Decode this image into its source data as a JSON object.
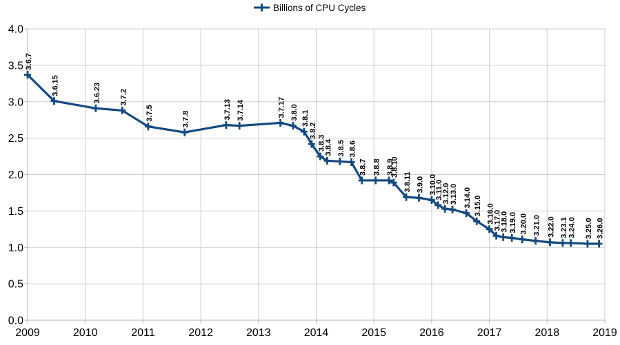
{
  "legend": {
    "label": "Billions of CPU Cycles"
  },
  "colors": {
    "series": "#14497E",
    "grid": "#CDCDCD",
    "axis": "#B3B3B3",
    "text": "#000000",
    "background": "#FFFFFF"
  },
  "chart_data": {
    "type": "line",
    "title": "",
    "xlabel": "",
    "ylabel": "",
    "legend": [
      "Billions of CPU Cycles"
    ],
    "legend_position": "top-center",
    "marker_style": "plus",
    "grid": true,
    "xlim": [
      2009,
      2019
    ],
    "ylim": [
      0.0,
      4.0
    ],
    "x_ticks": [
      "2009",
      "2010",
      "2011",
      "2012",
      "2013",
      "2014",
      "2015",
      "2016",
      "2017",
      "2018",
      "2019"
    ],
    "y_ticks": [
      "0.0",
      "0.5",
      "1.0",
      "1.5",
      "2.0",
      "2.5",
      "3.0",
      "3.5",
      "4.0"
    ],
    "series": [
      {
        "name": "Billions of CPU Cycles",
        "points": [
          {
            "label": "3.6.7",
            "x": 2009.0,
            "y": 3.37
          },
          {
            "label": "3.6.15",
            "x": 2009.46,
            "y": 3.01
          },
          {
            "label": "3.6.23",
            "x": 2010.18,
            "y": 2.91
          },
          {
            "label": "3.7.2",
            "x": 2010.64,
            "y": 2.88
          },
          {
            "label": "3.7.5",
            "x": 2011.09,
            "y": 2.66
          },
          {
            "label": "3.7.8",
            "x": 2011.72,
            "y": 2.58
          },
          {
            "label": "3.7.13",
            "x": 2012.44,
            "y": 2.68
          },
          {
            "label": "3.7.14",
            "x": 2012.67,
            "y": 2.67
          },
          {
            "label": "3.7.17",
            "x": 2013.38,
            "y": 2.71
          },
          {
            "label": "3.8.0",
            "x": 2013.6,
            "y": 2.67
          },
          {
            "label": "3.8.1",
            "x": 2013.79,
            "y": 2.59
          },
          {
            "label": "3.8.2",
            "x": 2013.92,
            "y": 2.42
          },
          {
            "label": "3.8.3",
            "x": 2014.07,
            "y": 2.25
          },
          {
            "label": "3.8.4",
            "x": 2014.19,
            "y": 2.19
          },
          {
            "label": "3.8.5",
            "x": 2014.41,
            "y": 2.18
          },
          {
            "label": "3.8.6",
            "x": 2014.61,
            "y": 2.17
          },
          {
            "label": "3.8.7",
            "x": 2014.79,
            "y": 1.92
          },
          {
            "label": "3.8.8",
            "x": 2015.03,
            "y": 1.92
          },
          {
            "label": "3.8.9",
            "x": 2015.26,
            "y": 1.92
          },
          {
            "label": "3.8.10",
            "x": 2015.34,
            "y": 1.89
          },
          {
            "label": "3.8.11",
            "x": 2015.56,
            "y": 1.69
          },
          {
            "label": "3.9.0",
            "x": 2015.78,
            "y": 1.68
          },
          {
            "label": "3.10.0",
            "x": 2016.0,
            "y": 1.65
          },
          {
            "label": "3.11.0",
            "x": 2016.11,
            "y": 1.58
          },
          {
            "label": "3.12.0",
            "x": 2016.23,
            "y": 1.53
          },
          {
            "label": "3.13.0",
            "x": 2016.36,
            "y": 1.52
          },
          {
            "label": "3.14.0",
            "x": 2016.6,
            "y": 1.47
          },
          {
            "label": "3.15.0",
            "x": 2016.78,
            "y": 1.36
          },
          {
            "label": "3.16.0",
            "x": 2017.0,
            "y": 1.25
          },
          {
            "label": "3.17.0",
            "x": 2017.12,
            "y": 1.16
          },
          {
            "label": "3.18.0",
            "x": 2017.24,
            "y": 1.14
          },
          {
            "label": "3.19.0",
            "x": 2017.39,
            "y": 1.13
          },
          {
            "label": "3.20.0",
            "x": 2017.57,
            "y": 1.11
          },
          {
            "label": "3.21.0",
            "x": 2017.8,
            "y": 1.09
          },
          {
            "label": "3.22.0",
            "x": 2018.05,
            "y": 1.07
          },
          {
            "label": "3.23.1",
            "x": 2018.27,
            "y": 1.06
          },
          {
            "label": "3.24.0",
            "x": 2018.41,
            "y": 1.06
          },
          {
            "label": "3.25.0",
            "x": 2018.7,
            "y": 1.05
          },
          {
            "label": "3.26.0",
            "x": 2018.9,
            "y": 1.05
          }
        ]
      }
    ]
  }
}
